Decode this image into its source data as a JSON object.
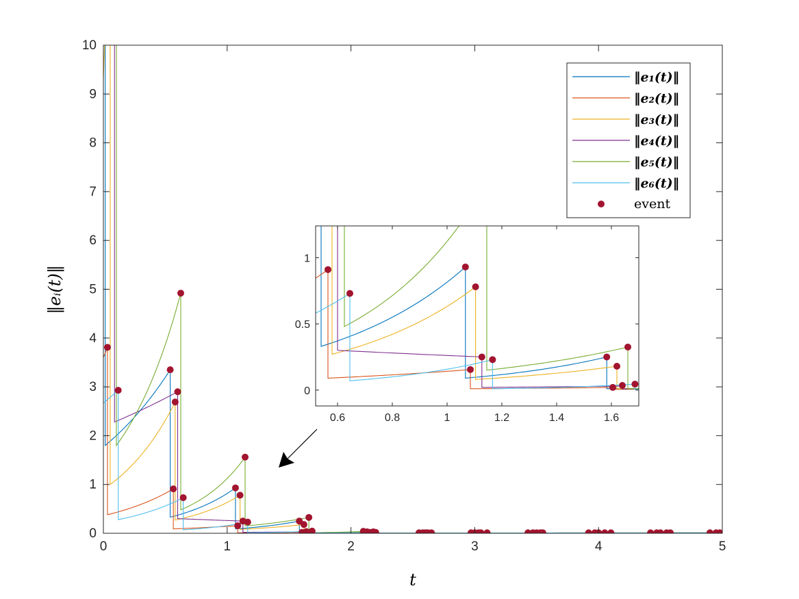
{
  "chart_data": {
    "type": "line",
    "xlabel": "t",
    "ylabel": "‖eᵢ(t)‖",
    "xlim": [
      0,
      5
    ],
    "ylim": [
      0,
      10
    ],
    "xticks": [
      "0",
      "1",
      "2",
      "3",
      "4",
      "5"
    ],
    "yticks": [
      "0",
      "1",
      "2",
      "3",
      "4",
      "5",
      "6",
      "7",
      "8",
      "9",
      "10"
    ],
    "legend_position": "top-right",
    "series": [
      {
        "name": "‖e₁(t)‖",
        "color": "#0072BD",
        "segments": [
          [
            0,
            12,
            0.015,
            12
          ],
          [
            0.015,
            1.8,
            0.54,
            3.35
          ],
          [
            0.54,
            0.33,
            1.067,
            0.93
          ],
          [
            1.067,
            0.09,
            1.583,
            0.25
          ],
          [
            1.583,
            0.01,
            2.13,
            0.03
          ],
          [
            2.13,
            0.005,
            5,
            0.01
          ]
        ]
      },
      {
        "name": "‖e₂(t)‖",
        "color": "#D95319",
        "segments": [
          [
            0,
            3.6,
            0.033,
            3.81
          ],
          [
            0.033,
            0.38,
            0.565,
            0.91
          ],
          [
            0.565,
            0.09,
            1.085,
            0.155
          ],
          [
            1.085,
            0.01,
            1.605,
            0.02
          ],
          [
            1.605,
            0.005,
            2.15,
            0.02
          ],
          [
            2.15,
            0.004,
            5,
            0.008
          ]
        ]
      },
      {
        "name": "‖e₃(t)‖",
        "color": "#EDB120",
        "segments": [
          [
            0,
            9.3,
            0.055,
            14
          ],
          [
            0.055,
            1.0,
            0.58,
            2.69
          ],
          [
            0.58,
            0.27,
            1.104,
            0.78
          ],
          [
            1.104,
            0.08,
            1.62,
            0.18
          ],
          [
            1.62,
            0.01,
            2.18,
            0.03
          ],
          [
            2.18,
            0.005,
            5,
            0.01
          ]
        ]
      },
      {
        "name": "‖e₄(t)‖",
        "color": "#7E2F8E",
        "segments": [
          [
            0,
            12,
            0.09,
            12
          ],
          [
            0.09,
            2.28,
            0.6,
            2.9
          ],
          [
            0.6,
            0.3,
            1.127,
            0.25
          ],
          [
            1.127,
            0.02,
            1.64,
            0.03
          ],
          [
            1.64,
            0.008,
            2.2,
            0.02
          ],
          [
            2.2,
            0.004,
            5,
            0.008
          ]
        ]
      },
      {
        "name": "‖e₅(t)‖",
        "color": "#77AC30",
        "segments": [
          [
            0,
            12,
            0.105,
            12
          ],
          [
            0.105,
            1.8,
            0.625,
            4.92
          ],
          [
            0.625,
            0.48,
            1.145,
            1.56
          ],
          [
            1.145,
            0.15,
            1.66,
            0.325
          ],
          [
            1.66,
            0.01,
            2.1,
            0.04
          ],
          [
            2.1,
            0.005,
            5,
            0.01
          ]
        ]
      },
      {
        "name": "‖e₆(t)‖",
        "color": "#4DBEEE",
        "segments": [
          [
            0,
            2.67,
            0.12,
            2.93
          ],
          [
            0.12,
            0.28,
            0.645,
            0.73
          ],
          [
            0.645,
            0.07,
            1.166,
            0.23
          ],
          [
            1.166,
            0.01,
            1.686,
            0.045
          ],
          [
            1.686,
            0.005,
            2.16,
            0.02
          ],
          [
            2.16,
            0.004,
            5,
            0.008
          ]
        ]
      }
    ],
    "event_label": "event",
    "event_color": "#A2142F",
    "events": [
      [
        0.033,
        3.81
      ],
      [
        0.12,
        2.93
      ],
      [
        0.54,
        3.35
      ],
      [
        0.565,
        0.91
      ],
      [
        0.58,
        2.69
      ],
      [
        0.6,
        2.9
      ],
      [
        0.625,
        4.92
      ],
      [
        0.645,
        0.73
      ],
      [
        1.067,
        0.93
      ],
      [
        1.085,
        0.155
      ],
      [
        1.104,
        0.78
      ],
      [
        1.127,
        0.25
      ],
      [
        1.145,
        1.56
      ],
      [
        1.166,
        0.23
      ],
      [
        1.583,
        0.25
      ],
      [
        1.605,
        0.02
      ],
      [
        1.62,
        0.18
      ],
      [
        1.64,
        0.035
      ],
      [
        1.66,
        0.325
      ],
      [
        1.686,
        0.045
      ],
      [
        2.1,
        0.04
      ],
      [
        2.13,
        0.03
      ],
      [
        2.15,
        0.02
      ],
      [
        2.18,
        0.03
      ],
      [
        2.2,
        0.02
      ],
      [
        2.55,
        0.01
      ],
      [
        2.58,
        0.01
      ],
      [
        2.6,
        0.01
      ],
      [
        2.62,
        0.01
      ],
      [
        2.65,
        0.01
      ],
      [
        2.97,
        0.01
      ],
      [
        3.0,
        0.01
      ],
      [
        3.03,
        0.01
      ],
      [
        3.05,
        0.01
      ],
      [
        3.1,
        0.01
      ],
      [
        3.43,
        0.01
      ],
      [
        3.47,
        0.01
      ],
      [
        3.5,
        0.01
      ],
      [
        3.53,
        0.01
      ],
      [
        3.55,
        0.01
      ],
      [
        3.92,
        0.01
      ],
      [
        3.97,
        0.01
      ],
      [
        4.0,
        0.01
      ],
      [
        4.05,
        0.01
      ],
      [
        4.1,
        0.01
      ],
      [
        4.42,
        0.01
      ],
      [
        4.47,
        0.01
      ],
      [
        4.5,
        0.01
      ],
      [
        4.55,
        0.01
      ],
      [
        4.58,
        0.01
      ],
      [
        4.9,
        0.01
      ],
      [
        4.95,
        0.01
      ],
      [
        4.98,
        0.01
      ]
    ],
    "inset": {
      "xlim": [
        0.52,
        1.7
      ],
      "ylim": [
        -0.12,
        1.24
      ],
      "xticks": [
        "0.6",
        "0.8",
        "1",
        "1.2",
        "1.4",
        "1.6"
      ],
      "yticks": [
        "0",
        "0.5",
        "1"
      ]
    }
  }
}
